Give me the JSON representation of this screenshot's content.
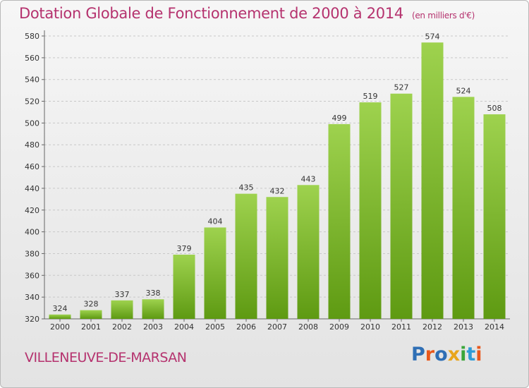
{
  "header": {
    "title": "Dotation Globale de Fonctionnement de 2000 à 2014",
    "unit": "(en milliers d'€)"
  },
  "footer": {
    "commune": "VILLENEUVE-DE-MARSAN",
    "logo": "Proxiti"
  },
  "colors": {
    "title": "#b5326e",
    "bar_light": "#9ed24e",
    "bar_dark": "#5e9a12"
  },
  "chart_data": {
    "type": "bar",
    "title": "Dotation Globale de Fonctionnement de 2000 à 2014",
    "xlabel": "",
    "ylabel": "",
    "categories": [
      "2000",
      "2001",
      "2002",
      "2003",
      "2004",
      "2005",
      "2006",
      "2007",
      "2008",
      "2009",
      "2010",
      "2011",
      "2012",
      "2013",
      "2014"
    ],
    "values": [
      324,
      328,
      337,
      338,
      379,
      404,
      435,
      432,
      443,
      499,
      519,
      527,
      574,
      524,
      508
    ],
    "ylim": [
      320,
      580
    ],
    "yticks": [
      320,
      340,
      360,
      380,
      400,
      420,
      440,
      460,
      480,
      500,
      520,
      540,
      560,
      580
    ],
    "grid": true,
    "data_labels": true
  }
}
